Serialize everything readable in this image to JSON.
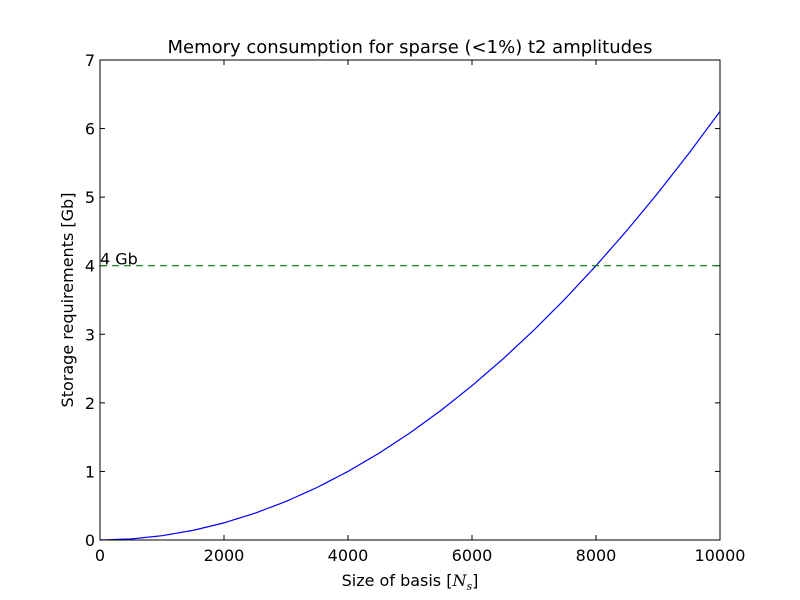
{
  "chart_data": {
    "type": "line",
    "title": "Memory consumption for sparse (<1%) t2 amplitudes",
    "xlabel_text": "Size of basis [",
    "xlabel_var": "N",
    "xlabel_sub": "s",
    "xlabel_close": "]",
    "ylabel": "Storage requirements [Gb]",
    "xlim": [
      0,
      10000
    ],
    "ylim": [
      0,
      7
    ],
    "xticks": [
      0,
      2000,
      4000,
      6000,
      8000,
      10000
    ],
    "yticks": [
      0,
      1,
      2,
      3,
      4,
      5,
      6,
      7
    ],
    "grid": false,
    "series": [
      {
        "color": "#0000ff",
        "style": "solid",
        "x": [
          0,
          500,
          1000,
          1500,
          2000,
          2500,
          3000,
          3500,
          4000,
          4500,
          5000,
          5500,
          6000,
          6500,
          7000,
          7500,
          8000,
          8500,
          9000,
          9500,
          10000
        ],
        "y": [
          0,
          0.0156,
          0.0625,
          0.1406,
          0.25,
          0.3906,
          0.5625,
          0.7656,
          1.0,
          1.2656,
          1.5625,
          1.8906,
          2.25,
          2.6406,
          3.0625,
          3.5156,
          4.0,
          4.5156,
          5.0625,
          5.6406,
          6.25
        ]
      },
      {
        "color": "#008000",
        "style": "dashed",
        "x": [
          0,
          10000
        ],
        "y": [
          4,
          4
        ]
      }
    ],
    "annotations": [
      {
        "text": "4 Gb",
        "x": 0,
        "y": 4
      }
    ]
  }
}
